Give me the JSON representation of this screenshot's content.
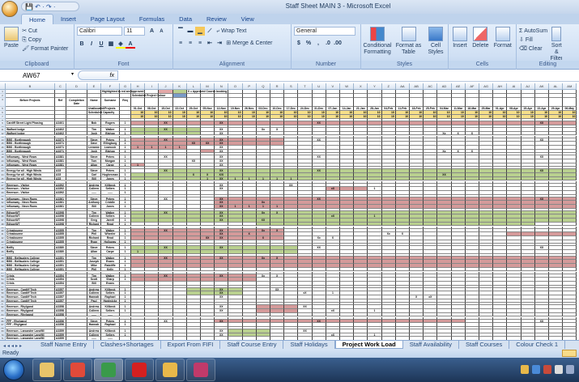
{
  "window": {
    "title": "Staff Sheet MAIN 3 - Microsoft Excel",
    "qat": "💾 ↶ · ↷ ·"
  },
  "ribbon_tabs": [
    {
      "label": "Home",
      "active": true
    },
    {
      "label": "Insert"
    },
    {
      "label": "Page Layout"
    },
    {
      "label": "Formulas"
    },
    {
      "label": "Data"
    },
    {
      "label": "Review"
    },
    {
      "label": "View"
    }
  ],
  "clipboard": {
    "label": "Clipboard",
    "paste": "Paste",
    "cut": "Cut",
    "copy": "Copy",
    "format_painter": "Format Painter"
  },
  "font": {
    "label": "Font",
    "name": "Calibri",
    "size": "11",
    "bold": "B",
    "italic": "I",
    "underline": "U"
  },
  "alignment": {
    "label": "Alignment",
    "wrap_text": "Wrap Text",
    "merge_center": "Merge & Center"
  },
  "number": {
    "label": "Number",
    "format": "General",
    "percent": "%",
    "comma": ","
  },
  "styles": {
    "label": "Styles",
    "conditional": "Conditional Formatting",
    "format_table": "Format as Table",
    "cell_styles": "Cell Styles"
  },
  "cells": {
    "label": "Cells",
    "insert": "Insert",
    "delete": "Delete",
    "format": "Format"
  },
  "editing": {
    "label": "Editing",
    "autosum": "Σ AutoSum",
    "fill": "Fill",
    "clear": "Clear",
    "sort": "Sort & Filter"
  },
  "formula_bar": {
    "name_box": "AW67",
    "fx": "fx",
    "value": ""
  },
  "colors": {
    "red": "#d49a9a",
    "green": "#b9d08f",
    "yellow": "#f7e08a",
    "lightred": "#e3a8a8",
    "blue": "#7a9cc8"
  },
  "columns": [
    "B",
    "C",
    "D",
    "E",
    "F",
    "G",
    "H",
    "I",
    "J",
    "K",
    "L",
    "M",
    "N",
    "O",
    "P",
    "Q",
    "R",
    "S",
    "T",
    "U",
    "V",
    "W",
    "X",
    "Y",
    "Z",
    "AA",
    "AB",
    "AC",
    "AD",
    "AE",
    "AF",
    "AG",
    "AH",
    "AI",
    "AJ",
    "AK",
    "AL",
    "AM"
  ],
  "header": {
    "legend_red": "Highlighted in red are Approved",
    "legend_green": "Scheduled Project Colour",
    "legend_note": "X = Approved Course booking",
    "project_label": "Before Projects",
    "code_label": "Ref",
    "date_label": "Completion Date",
    "first_label": "Name",
    "last_label": "Surname",
    "count_label": "Req",
    "unallocated_label": "Unallocated/Projects",
    "capacity_label": "Scheduled Capacity",
    "capacity_value": "10"
  },
  "weeks": [
    "01-Oct",
    "08-Oct",
    "15-Oct",
    "22-Oct",
    "29-Oct",
    "05-Nov",
    "12-Nov",
    "19-Nov",
    "26-Nov",
    "03-Dec",
    "10-Dec",
    "17-Dec",
    "24-Dec",
    "31-Dec",
    "07-Jan",
    "14-Jan",
    "21-Jan",
    "28-Jan",
    "04-Feb",
    "11-Feb",
    "18-Feb",
    "25-Feb",
    "04-Mar",
    "11-Mar",
    "18-Mar",
    "25-Mar",
    "01-Apr",
    "08-Apr",
    "15-Apr",
    "22-Apr",
    "29-Apr",
    "06-May"
  ],
  "rows": [
    {
      "project": "Cardiff Street Light Phasing",
      "code": "A3401",
      "first": "Bob",
      "last": "Rogers",
      "count": "1",
      "bars": [
        [
          "01-Oct",
          "06-May",
          "red"
        ]
      ],
      "marks": {
        "15-Oct": "XX",
        "12-Nov": "XX",
        "31-Dec": "XX",
        "22-Apr": "XX"
      }
    },
    {},
    {
      "project": "Walford lodge",
      "code": "A3402",
      "first": "Tim",
      "last": "Walker",
      "count": "1",
      "bars": [
        [
          "01-Oct",
          "29-Oct",
          "green"
        ]
      ],
      "marks": {
        "15-Oct": "XX",
        "12-Nov": "XX",
        "03-Dec": "Xx",
        "10-Dec": "X"
      }
    },
    {
      "project": "Walford lodge",
      "code": "A3402",
      "first": "Josh",
      "last": "Bishop",
      "count": "1",
      "bars": [
        [
          "01-Oct",
          "29-Oct",
          "green"
        ]
      ],
      "marks": {
        "12-Nov": "XX",
        "04-Mar": "Xx",
        "11-Mar": "X",
        "18-Mar": "X"
      }
    },
    {},
    {
      "project": "BBS - Borthwaugh",
      "code": "A3371",
      "first": "Steve",
      "last": "Peters",
      "count": "1",
      "bars": [
        [
          "01-Oct",
          "10-Dec",
          "red"
        ]
      ],
      "marks": {
        "15-Oct": "XX",
        "12-Nov": "XX",
        "31-Dec": "XX",
        "22-Apr": "XX"
      }
    },
    {
      "project": "BBS - Borthwaugh",
      "code": "A3371",
      "first": "Dave",
      "last": "Ellingburg",
      "count": "1",
      "bars": [
        [
          "01-Oct",
          "10-Dec",
          "red"
        ]
      ],
      "marks": {
        "29-Oct": "XX",
        "05-Nov": "XX",
        "12-Nov": "XX"
      }
    },
    {
      "project": "BBS - Borthwaugh",
      "code": "A3371",
      "first": "Leeanne",
      "last": "Lowcock",
      "count": "1",
      "bars": [
        [
          "01-Oct",
          "22-Oct",
          "red"
        ]
      ],
      "marks": {
        "01-Oct": "1",
        "08-Oct": "1",
        "15-Oct": "1",
        "22-Oct": "1",
        "12-Nov": "XX"
      }
    },
    {
      "project": "BBS - Borthwaugh",
      "code": "A3371",
      "first": "Josh",
      "last": "Bishop",
      "count": "1",
      "bars": [
        [
          "05-Nov",
          "05-Nov",
          "red"
        ]
      ],
      "marks": {
        "12-Nov": "XX",
        "04-Mar": "Xx",
        "11-Mar": "X",
        "18-Mar": "X"
      }
    },
    {},
    {
      "project": "Inflowway - West Rows",
      "code": "A3381",
      "first": "Steve",
      "last": "Peters",
      "count": "1",
      "bars": [],
      "marks": {
        "15-Oct": "XX",
        "12-Nov": "XX",
        "31-Dec": "XX",
        "22-Apr": "XX"
      }
    },
    {
      "project": "Inflowway - West Rows",
      "code": "A3381",
      "first": "Tom",
      "last": "Morgan",
      "count": "1",
      "bars": [],
      "marks": {
        "29-Oct": "XX",
        "12-Nov": "XX"
      }
    },
    {
      "project": "Inflowway - West Rows",
      "code": "A3381",
      "first": "Allan",
      "last": "Carpe",
      "count": "1",
      "bars": [
        [
          "01-Oct",
          "01-Oct",
          "red"
        ]
      ],
      "marks": {
        "01-Oct": "1",
        "12-Nov": "XX"
      }
    },
    {},
    {
      "project": "Energy for all - High Winds",
      "code": "A33",
      "first": "Steve",
      "last": "Peters",
      "count": "1",
      "bars": [
        [
          "15-Oct",
          "06-May",
          "green"
        ]
      ],
      "marks": {
        "15-Oct": "XX",
        "12-Nov": "XX",
        "31-Dec": "XX",
        "22-Apr": "XX"
      }
    },
    {
      "project": "Energy for all - High Winds",
      "code": "A33",
      "first": "Carl",
      "last": "Hughesman",
      "count": "1",
      "bars": [
        [
          "01-Oct",
          "06-May",
          "green"
        ]
      ],
      "marks": {
        "29-Oct": "X",
        "05-Nov": "X",
        "12-Nov": "X/X",
        "04-Mar": "XX"
      }
    },
    {
      "project": "Energy for all - High Winds",
      "code": "A33",
      "first": "Bill",
      "last": "Jones",
      "count": "1",
      "bars": [
        [
          "01-Oct",
          "06-May",
          "green"
        ]
      ],
      "marks": {
        "05-Nov": "1",
        "12-Nov": "XX",
        "19-Nov": "1",
        "26-Nov": "1",
        "03-Dec": "1",
        "10-Dec": "1",
        "17-Dec": "1"
      }
    },
    {},
    {
      "project": "Emerson - Visitor",
      "code": "A3392",
      "first": "Andrew",
      "last": "Killbeck",
      "count": "1",
      "bars": [],
      "marks": {
        "12-Nov": "XX",
        "17-Dec": "XX"
      }
    },
    {
      "project": "Emerson - Visitor",
      "code": "A3392",
      "first": "Colleen",
      "last": "Sellers",
      "count": "1",
      "bars": [
        [
          "07-Jan",
          "21-Jan",
          "red"
        ]
      ],
      "marks": {
        "12-Nov": "XX",
        "07-Jan": "xX",
        "28-Jan": "1"
      }
    },
    {
      "project": "Emerson - Visitor",
      "code": "A3392",
      "first": "-----",
      "last": "-----",
      "count": "1",
      "bars": [],
      "marks": {}
    },
    {},
    {
      "project": "Inflowway - Neon Rows",
      "code": "A3361",
      "first": "Steve",
      "last": "Peters",
      "count": "1",
      "bars": [
        [
          "12-Nov",
          "06-May",
          "red"
        ]
      ],
      "marks": {
        "15-Oct": "XX",
        "12-Nov": "XX",
        "31-Dec": "XX",
        "22-Apr": "XX"
      }
    },
    {
      "project": "Inflowway - Neon Rows",
      "code": "A3361",
      "first": "Anthony",
      "last": "Criddle",
      "count": "1",
      "bars": [
        [
          "12-Nov",
          "06-May",
          "red"
        ]
      ],
      "marks": {
        "12-Nov": "XX",
        "03-Dec": "Xx"
      }
    },
    {
      "project": "Inflowway - Neon Rows",
      "code": "A3361",
      "first": "Bill",
      "last": "Jones",
      "count": "1",
      "bars": [
        [
          "12-Nov",
          "06-May",
          "red"
        ]
      ],
      "marks": {
        "12-Nov": "XX",
        "19-Nov": "1",
        "26-Nov": "1",
        "03-Dec": "1",
        "10-Dec": "1"
      }
    },
    {},
    {
      "project": "EdisonWT",
      "code": "A3398",
      "first": "Tim",
      "last": "Walker",
      "count": "1",
      "bars": [
        [
          "01-Oct",
          "06-May",
          "green"
        ]
      ],
      "marks": {
        "15-Oct": "XX",
        "12-Nov": "XX",
        "03-Dec": "Xx",
        "10-Dec": "X"
      }
    },
    {
      "project": "EdisonWT",
      "code": "A3398",
      "first": "Colleen",
      "last": "Sellers",
      "count": "1",
      "bars": [
        [
          "01-Oct",
          "06-May",
          "green"
        ]
      ],
      "marks": {
        "12-Nov": "XX",
        "07-Jan": "xX",
        "28-Jan": "1"
      }
    },
    {
      "project": "EdisonWT",
      "code": "A3398",
      "first": "Greg",
      "last": "Jarrell",
      "count": "1",
      "bars": [
        [
          "01-Oct",
          "06-May",
          "green"
        ]
      ],
      "marks": {
        "12-Nov": "XX",
        "03-Dec": "XX"
      }
    },
    {
      "project": "EdisonWT",
      "code": "A3398",
      "first": "Richard",
      "last": "Read",
      "count": "1",
      "bars": [
        [
          "03-Dec",
          "15-Apr",
          "green"
        ]
      ],
      "marks": {}
    },
    {},
    {
      "project": "Crinabourne",
      "code": "A3355",
      "first": "Tim",
      "last": "Walker",
      "count": "1",
      "bars": [
        [
          "01-Oct",
          "10-Dec",
          "red"
        ]
      ],
      "marks": {
        "15-Oct": "XX",
        "12-Nov": "XX",
        "03-Dec": "Xx",
        "10-Dec": "X"
      }
    },
    {
      "project": "Crinabourne",
      "code": "A3355",
      "first": "Phil",
      "last": "Wheeler",
      "count": "1",
      "bars": [
        [
          "01-Oct",
          "10-Dec",
          "red"
        ],
        [
          "08-Apr",
          "06-May",
          "red"
        ]
      ],
      "marks": {
        "12-Nov": "XX",
        "26-Nov": "X",
        "04-Feb": "Xx",
        "11-Feb": "X"
      }
    },
    {
      "project": "Crinabourne",
      "code": "A3355",
      "first": "Richard",
      "last": "Read",
      "count": "1",
      "bars": [
        [
          "01-Oct",
          "10-Dec",
          "red"
        ]
      ],
      "marks": {
        "05-Nov": "XX",
        "12-Nov": "XX",
        "03-Dec": "X",
        "31-Dec": "Xx",
        "07-Jan": "X"
      }
    },
    {
      "project": "Crinabourne",
      "code": "A3355",
      "first": "Ryan",
      "last": "Holloway",
      "count": "1",
      "bars": [],
      "marks": {}
    },
    {},
    {
      "project": "Belfly",
      "code": "A3380",
      "first": "Steve",
      "last": "Peters",
      "count": "1",
      "bars": [
        [
          "01-Oct",
          "17-Dec",
          "green"
        ]
      ],
      "marks": {
        "15-Oct": "XX",
        "12-Nov": "XX",
        "31-Dec": "XX",
        "22-Apr": "XX"
      }
    },
    {
      "project": "Belfly",
      "code": "A3380",
      "first": "Allan",
      "last": "Carpe",
      "count": "1",
      "bars": [
        [
          "01-Oct",
          "17-Dec",
          "green"
        ]
      ],
      "marks": {
        "01-Oct": "1"
      }
    },
    {},
    {
      "project": "BBS - Belfauders College",
      "code": "A3351",
      "first": "Tim",
      "last": "Walker",
      "count": "1",
      "bars": [
        [
          "01-Oct",
          "06-May",
          "red"
        ]
      ],
      "marks": {
        "15-Oct": "XX",
        "12-Nov": "XX",
        "03-Dec": "Xx",
        "10-Dec": "X"
      }
    },
    {
      "project": "BBS - Belfauders College",
      "code": "A3351",
      "first": "Joseph",
      "last": "Evans",
      "count": "1",
      "bars": [
        [
          "01-Oct",
          "06-May",
          "red"
        ]
      ],
      "marks": {}
    },
    {
      "project": "BBS - Belfauders College",
      "code": "A3351",
      "first": "Mike",
      "last": "Ratcliffe",
      "count": "1",
      "bars": [
        [
          "01-Oct",
          "06-May",
          "red"
        ]
      ],
      "marks": {}
    },
    {
      "project": "BBS - Belfauders College",
      "code": "A3351",
      "first": "Phil",
      "last": "Kelly",
      "count": "1",
      "bars": [],
      "marks": {}
    },
    {},
    {
      "project": "Crinis",
      "code": "A3354",
      "first": "Tim",
      "last": "Walker",
      "count": "1",
      "bars": [
        [
          "01-Oct",
          "26-Nov",
          "red"
        ]
      ],
      "marks": {
        "15-Oct": "XX",
        "12-Nov": "XX",
        "03-Dec": "Xx",
        "10-Dec": "X"
      }
    },
    {
      "project": "Crinis",
      "code": "A3354",
      "first": "Scott",
      "last": "Sharp",
      "count": "1",
      "bars": [
        [
          "01-Oct",
          "08-Oct",
          "red"
        ],
        [
          "15-Oct",
          "26-Nov",
          "red"
        ]
      ],
      "marks": {}
    },
    {
      "project": "Crinis",
      "code": "A3354",
      "first": "Bill",
      "last": "Evans",
      "count": "",
      "bars": [],
      "marks": {}
    },
    {},
    {
      "project": "Emerson - Cardiff Tech",
      "code": "A3357",
      "first": "Andrew",
      "last": "Killbeck",
      "count": "1",
      "bars": [
        [
          "29-Oct",
          "19-Nov",
          "green"
        ]
      ],
      "marks": {
        "12-Nov": "XX",
        "10-Dec": "XX"
      }
    },
    {
      "project": "Emerson - Cardiff Tech",
      "code": "A3357",
      "first": "Colleen",
      "last": "Sellers",
      "count": "1",
      "bars": [
        [
          "29-Oct",
          "19-Nov",
          "green"
        ]
      ],
      "marks": {
        "12-Nov": "XX",
        "24-Dec": "xX",
        "07-Jan": "1"
      }
    },
    {
      "project": "Emerson - Cardiff Tech",
      "code": "A3357",
      "first": "Hannah",
      "last": "Raphael",
      "count": "1",
      "bars": [],
      "marks": {
        "12-Nov": "XX",
        "18-Feb": "X",
        "25-Feb": "xX"
      }
    },
    {
      "project": "Emerson - Cardiff Tech",
      "code": "A3357",
      "first": "Paul",
      "last": "Hardwicke",
      "count": "1",
      "bars": [],
      "marks": {}
    },
    {},
    {
      "project": "Emerson - Rhylgand",
      "code": "A3358",
      "first": "Andrew",
      "last": "Killbeck",
      "count": "1",
      "bars": [
        [
          "03-Dec",
          "17-Dec",
          "red"
        ]
      ],
      "marks": {
        "12-Nov": "XX",
        "24-Dec": "XX"
      }
    },
    {
      "project": "Emerson - Rhylgand",
      "code": "A3358",
      "first": "Colleen",
      "last": "Sellers",
      "count": "1",
      "bars": [
        [
          "03-Dec",
          "17-Dec",
          "red"
        ]
      ],
      "marks": {
        "12-Nov": "XX",
        "07-Jan": "xX",
        "28-Jan": "1"
      }
    },
    {
      "project": "Emerson - Rhylgand",
      "code": "A3358",
      "first": "-----",
      "last": "-----",
      "count": "",
      "bars": [],
      "marks": {}
    },
    {},
    {
      "project": "FFF - Rhylgand",
      "code": "A3356",
      "first": "Steve",
      "last": "Peters",
      "count": "1",
      "bars": [
        [
          "12-Nov",
          "11-Mar",
          "red"
        ]
      ],
      "marks": {
        "15-Oct": "XX",
        "12-Nov": "XX",
        "31-Dec": "XX",
        "22-Apr": "XX"
      }
    },
    {
      "project": "FFF - Rhylgand",
      "code": "A3356",
      "first": "Hannah",
      "last": "Raphael",
      "count": "1",
      "bars": [],
      "marks": {}
    },
    {},
    {
      "project": "Emerson - Lancaster Landfill",
      "code": "A3359",
      "first": "Andrew",
      "last": "Killbeck",
      "count": "1",
      "bars": [
        [
          "19-Nov",
          "03-Dec",
          "green"
        ]
      ],
      "marks": {
        "12-Nov": "XX",
        "24-Dec": "XX"
      }
    },
    {
      "project": "Emerson - Lancaster Landfill",
      "code": "A3359",
      "first": "Colleen",
      "last": "Sellers",
      "count": "1",
      "bars": [
        [
          "19-Nov",
          "03-Dec",
          "green"
        ]
      ],
      "marks": {
        "12-Nov": "XX",
        "07-Jan": "xX",
        "28-Jan": "1"
      }
    },
    {
      "project": "Emerson - Lancaster Landfill",
      "code": "A3359",
      "first": "-----",
      "last": "-----",
      "count": "",
      "bars": [],
      "marks": {}
    },
    {},
    {
      "project": "FFF - Lancaster Landfill",
      "code": "A",
      "first": "Tim",
      "last": "Walker",
      "count": "1",
      "bars": [
        [
          "12-Nov",
          "11-Feb",
          "red"
        ]
      ],
      "marks": {
        "15-Oct": "XX",
        "12-Nov": "XX",
        "03-Dec": "Xx",
        "10-Dec": "X"
      }
    }
  ],
  "sheet_tabs": [
    {
      "label": "Staff Name Entry"
    },
    {
      "label": "Clashes+Shortages"
    },
    {
      "label": "Export From FIFI"
    },
    {
      "label": "Staff Course Entry"
    },
    {
      "label": "Staff Holidays"
    },
    {
      "label": "Project Work Load",
      "active": true
    },
    {
      "label": "Staff Availability"
    },
    {
      "label": "Staff Courses"
    },
    {
      "label": "Colour Check 1"
    }
  ],
  "status": {
    "text": "Ready"
  },
  "taskbar": {
    "apps": [
      {
        "name": "file-explorer",
        "color": "#e8c46a"
      },
      {
        "name": "chrome",
        "color": "#e04a3a"
      },
      {
        "name": "excel",
        "color": "#3a9a4a",
        "active": true
      },
      {
        "name": "acrobat",
        "color": "#d42020"
      },
      {
        "name": "outlook",
        "color": "#e8b84a"
      },
      {
        "name": "access",
        "color": "#c03a6a"
      }
    ]
  }
}
